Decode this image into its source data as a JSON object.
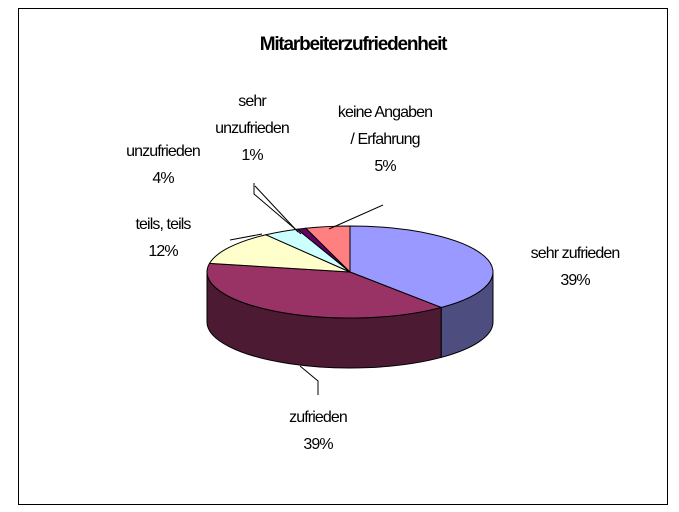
{
  "chart_data": {
    "type": "pie3d",
    "title": "Mitarbeiterzufriedenheit",
    "categories": [
      "sehr zufrieden",
      "zufrieden",
      "teils, teils",
      "unzufrieden",
      "sehr\nunzufrieden",
      "keine Angaben\n/ Erfahrung"
    ],
    "values": [
      39,
      39,
      12,
      4,
      1,
      5
    ],
    "value_labels": [
      "39%",
      "39%",
      "12%",
      "4%",
      "1%",
      "5%"
    ],
    "colors": [
      "#9999ff",
      "#993366",
      "#ffffcc",
      "#ccffff",
      "#660066",
      "#ff8080"
    ]
  }
}
